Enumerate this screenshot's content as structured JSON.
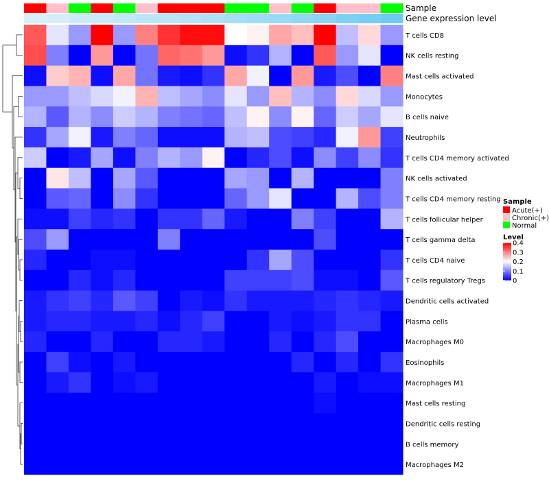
{
  "chart_data": {
    "type": "heatmap",
    "title": "",
    "annotation_labels": {
      "sample": "Sample",
      "gene_expression": "Gene expression level"
    },
    "columns": [
      {
        "sample": "Acute(+)",
        "gene_level": 0.1
      },
      {
        "sample": "Chronic(+)",
        "gene_level": 0.12
      },
      {
        "sample": "Normal",
        "gene_level": 0.18
      },
      {
        "sample": "Acute(+)",
        "gene_level": 0.2
      },
      {
        "sample": "Normal",
        "gene_level": 0.24
      },
      {
        "sample": "Chronic(+)",
        "gene_level": 0.3
      },
      {
        "sample": "Acute(+)",
        "gene_level": 0.32
      },
      {
        "sample": "Acute(+)",
        "gene_level": 0.35
      },
      {
        "sample": "Acute(+)",
        "gene_level": 0.4
      },
      {
        "sample": "Normal",
        "gene_level": 0.45
      },
      {
        "sample": "Normal",
        "gene_level": 0.5
      },
      {
        "sample": "Chronic(+)",
        "gene_level": 0.55
      },
      {
        "sample": "Normal",
        "gene_level": 0.6
      },
      {
        "sample": "Acute(+)",
        "gene_level": 0.66
      },
      {
        "sample": "Chronic(+)",
        "gene_level": 0.72
      },
      {
        "sample": "Chronic(+)",
        "gene_level": 0.78
      },
      {
        "sample": "Normal",
        "gene_level": 0.85
      }
    ],
    "rows": [
      "T cells CD8",
      "NK cells resting",
      "Mast cells activated",
      "Monocytes",
      "B cells naive",
      "Neutrophils",
      "T cells CD4 memory activated",
      "NK cells activated",
      "T cells CD4 memory resting",
      "T cells follicular helper",
      "T cells gamma delta",
      "T cells CD4 naive",
      "T cells regulatory  Tregs",
      "Dendritic cells activated",
      "Plasma cells",
      "Macrophages M0",
      "Eosinophils",
      "Macrophages M1",
      "Mast cells resting",
      "Dendritic cells resting",
      "B cells memory",
      "Macrophages M2"
    ],
    "values": [
      [
        0.33,
        0.18,
        0.12,
        0.4,
        0.12,
        0.3,
        0.36,
        0.39,
        0.39,
        0.2,
        0.21,
        0.27,
        0.25,
        0.4,
        0.15,
        0.23,
        0.12
      ],
      [
        0.34,
        0.1,
        0.0,
        0.28,
        0.0,
        0.09,
        0.32,
        0.31,
        0.28,
        0.01,
        0.04,
        0.14,
        0.0,
        0.33,
        0.12,
        0.18,
        0.0
      ],
      [
        0.01,
        0.24,
        0.26,
        0.01,
        0.27,
        0.09,
        0.02,
        0.01,
        0.04,
        0.27,
        0.19,
        0.0,
        0.28,
        0.02,
        0.06,
        0.0,
        0.3
      ],
      [
        0.12,
        0.12,
        0.15,
        0.17,
        0.19,
        0.26,
        0.15,
        0.13,
        0.11,
        0.18,
        0.12,
        0.25,
        0.14,
        0.11,
        0.23,
        0.17,
        0.12
      ],
      [
        0.14,
        0.07,
        0.14,
        0.11,
        0.16,
        0.14,
        0.1,
        0.09,
        0.08,
        0.15,
        0.21,
        0.11,
        0.21,
        0.08,
        0.16,
        0.13,
        0.18
      ],
      [
        0.04,
        0.13,
        0.19,
        0.02,
        0.1,
        0.08,
        0.01,
        0.01,
        0.01,
        0.14,
        0.15,
        0.06,
        0.05,
        0.03,
        0.19,
        0.28,
        0.05
      ],
      [
        0.16,
        0.0,
        0.02,
        0.13,
        0.01,
        0.1,
        0.14,
        0.12,
        0.21,
        0.0,
        0.03,
        0.06,
        0.01,
        0.11,
        0.05,
        0.11,
        0.04
      ],
      [
        0.0,
        0.22,
        0.15,
        0.0,
        0.13,
        0.07,
        0.0,
        0.0,
        0.0,
        0.13,
        0.12,
        0.0,
        0.14,
        0.0,
        0.0,
        0.0,
        0.1
      ],
      [
        0.0,
        0.07,
        0.08,
        0.0,
        0.11,
        0.04,
        0.0,
        0.0,
        0.0,
        0.08,
        0.12,
        0.18,
        0.0,
        0.0,
        0.14,
        0.06,
        0.1
      ],
      [
        0.01,
        0.01,
        0.05,
        0.03,
        0.04,
        0.0,
        0.04,
        0.04,
        0.08,
        0.02,
        0.0,
        0.0,
        0.1,
        0.05,
        0.0,
        0.0,
        0.14
      ],
      [
        0.06,
        0.12,
        0.0,
        0.0,
        0.0,
        0.0,
        0.1,
        0.0,
        0.0,
        0.0,
        0.0,
        0.0,
        0.0,
        0.06,
        0.0,
        0.0,
        0.0
      ],
      [
        0.03,
        0.0,
        0.0,
        0.01,
        0.01,
        0.0,
        0.0,
        0.0,
        0.0,
        0.0,
        0.04,
        0.13,
        0.06,
        0.0,
        0.0,
        0.0,
        0.04
      ],
      [
        0.0,
        0.0,
        0.03,
        0.01,
        0.03,
        0.0,
        0.0,
        0.0,
        0.0,
        0.05,
        0.05,
        0.05,
        0.06,
        0.01,
        0.01,
        0.0,
        0.07
      ],
      [
        0.02,
        0.04,
        0.05,
        0.03,
        0.07,
        0.05,
        0.0,
        0.02,
        0.01,
        0.04,
        0.02,
        0.02,
        0.02,
        0.03,
        0.04,
        0.03,
        0.02
      ],
      [
        0.02,
        0.03,
        0.03,
        0.02,
        0.02,
        0.03,
        0.01,
        0.03,
        0.05,
        0.0,
        0.0,
        0.02,
        0.01,
        0.02,
        0.04,
        0.04,
        0.0
      ],
      [
        0.03,
        0.0,
        0.0,
        0.03,
        0.0,
        0.0,
        0.03,
        0.03,
        0.02,
        0.0,
        0.0,
        0.03,
        0.0,
        0.03,
        0.06,
        0.0,
        0.0
      ],
      [
        0.0,
        0.05,
        0.01,
        0.0,
        0.02,
        0.0,
        0.0,
        0.0,
        0.0,
        0.0,
        0.0,
        0.0,
        0.03,
        0.0,
        0.03,
        0.0,
        0.04
      ],
      [
        0.0,
        0.02,
        0.04,
        0.0,
        0.01,
        0.02,
        0.0,
        0.0,
        0.0,
        0.0,
        0.0,
        0.0,
        0.0,
        0.02,
        0.0,
        0.01,
        0.01
      ],
      [
        0.0,
        0.0,
        0.0,
        0.0,
        0.0,
        0.0,
        0.0,
        0.0,
        0.0,
        0.0,
        0.0,
        0.0,
        0.0,
        0.01,
        0.0,
        0.0,
        0.0
      ],
      [
        0.0,
        0.0,
        0.0,
        0.0,
        0.0,
        0.0,
        0.0,
        0.0,
        0.0,
        0.0,
        0.0,
        0.0,
        0.0,
        0.0,
        0.0,
        0.0,
        0.0
      ],
      [
        0.0,
        0.0,
        0.0,
        0.0,
        0.0,
        0.0,
        0.0,
        0.0,
        0.0,
        0.0,
        0.0,
        0.0,
        0.0,
        0.0,
        0.0,
        0.0,
        0.0
      ],
      [
        0.0,
        0.0,
        0.0,
        0.0,
        0.0,
        0.0,
        0.0,
        0.0,
        0.0,
        0.0,
        0.0,
        0.0,
        0.0,
        0.0,
        0.0,
        0.0,
        0.0
      ]
    ],
    "color_scale": {
      "min": 0,
      "max": 0.4,
      "stops": [
        "#0000ff",
        "#ffffff",
        "#ff0000"
      ]
    },
    "gene_level_scale": {
      "low": "#e6f4fb",
      "high": "#56c4f0"
    },
    "sample_colors": {
      "Acute(+)": "#ff0000",
      "Chronic(+)": "#ffc0cb",
      "Normal": "#00ff00"
    },
    "legend": {
      "sample_title": "Sample",
      "sample_entries": [
        "Acute(+)",
        "Chronic(+)",
        "Normal"
      ],
      "level_title": "Level",
      "level_ticks": [
        "0.4",
        "0.3",
        "0.2",
        "0.1",
        "0"
      ],
      "level_tick_values": [
        0.4,
        0.3,
        0.2,
        0.1,
        0.0
      ],
      "placement": "right"
    }
  }
}
